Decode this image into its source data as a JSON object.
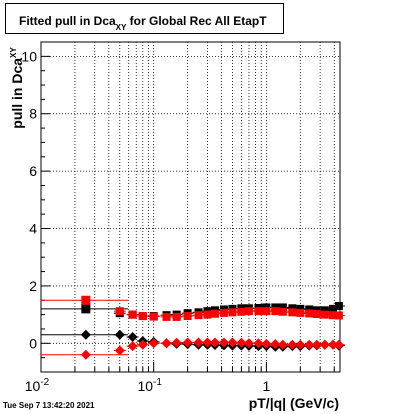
{
  "header": {
    "title_main": "Fitted pull in Dca",
    "title_sub": "XY",
    "title_rest": " for Global Rec All EtapT"
  },
  "footer": {
    "datestamp": "Tue Sep  7 13:42:20 2021"
  },
  "axes": {
    "xlabel": "pT/|q| (GeV/c)",
    "ylabel_main": "pull in Dca",
    "ylabel_sub": "XY"
  },
  "chart_data": {
    "type": "scatter",
    "title": "Fitted pull in Dca_XY for Global Rec All EtapT",
    "xlabel": "pT/|q| (GeV/c)",
    "ylabel": "pull in Dca_XY",
    "xscale": "log",
    "xlim": [
      0.01,
      4.5
    ],
    "ylim": [
      -1.0,
      10.5
    ],
    "grid": true,
    "x_tick_labels": [
      "10^-2",
      "10^-1",
      "1"
    ],
    "y_tick_labels": [
      "0",
      "2",
      "4",
      "6",
      "8",
      "10"
    ],
    "colors": {
      "black": "#000000",
      "red": "#ff0000"
    },
    "series": [
      {
        "marker": "square",
        "color": "#000000",
        "x": [
          0.025,
          0.05,
          0.065,
          0.08,
          0.1,
          0.13,
          0.16,
          0.2,
          0.25,
          0.3,
          0.35,
          0.42,
          0.5,
          0.6,
          0.7,
          0.85,
          1.0,
          1.2,
          1.4,
          1.7,
          2.0,
          2.4,
          2.8,
          3.3,
          3.9,
          4.4
        ],
        "y": [
          1.2,
          1.05,
          1.0,
          0.95,
          0.95,
          0.98,
          1.0,
          1.05,
          1.08,
          1.12,
          1.15,
          1.18,
          1.2,
          1.22,
          1.22,
          1.23,
          1.25,
          1.25,
          1.25,
          1.22,
          1.2,
          1.18,
          1.15,
          1.15,
          1.2,
          1.3
        ]
      },
      {
        "marker": "square",
        "color": "#ff0000",
        "x": [
          0.025,
          0.05,
          0.065,
          0.08,
          0.1,
          0.13,
          0.16,
          0.2,
          0.25,
          0.3,
          0.35,
          0.42,
          0.5,
          0.6,
          0.7,
          0.85,
          1.0,
          1.2,
          1.4,
          1.7,
          2.0,
          2.4,
          2.8,
          3.3,
          3.9,
          4.4
        ],
        "y": [
          1.5,
          1.12,
          1.0,
          0.95,
          0.93,
          0.92,
          0.92,
          0.95,
          0.98,
          1.0,
          1.03,
          1.06,
          1.08,
          1.1,
          1.12,
          1.12,
          1.12,
          1.12,
          1.1,
          1.08,
          1.06,
          1.04,
          1.02,
          1.0,
          0.98,
          0.97
        ]
      },
      {
        "marker": "diamond",
        "color": "#000000",
        "x": [
          0.025,
          0.05,
          0.065,
          0.08,
          0.1,
          0.13,
          0.16,
          0.2,
          0.25,
          0.3,
          0.35,
          0.42,
          0.5,
          0.6,
          0.7,
          0.85,
          1.0,
          1.2,
          1.4,
          1.7,
          2.0,
          2.4,
          2.8,
          3.3,
          3.9,
          4.4
        ],
        "y": [
          0.3,
          0.3,
          0.22,
          0.08,
          0.05,
          0.0,
          -0.02,
          -0.03,
          -0.05,
          -0.05,
          -0.06,
          -0.07,
          -0.08,
          -0.08,
          -0.09,
          -0.1,
          -0.1,
          -0.12,
          -0.12,
          -0.1,
          -0.1,
          -0.08,
          -0.07,
          -0.05,
          -0.05,
          -0.08
        ]
      },
      {
        "marker": "diamond",
        "color": "#ff0000",
        "x": [
          0.025,
          0.05,
          0.065,
          0.08,
          0.1,
          0.13,
          0.16,
          0.2,
          0.25,
          0.3,
          0.35,
          0.42,
          0.5,
          0.6,
          0.7,
          0.85,
          1.0,
          1.2,
          1.4,
          1.7,
          2.0,
          2.4,
          2.8,
          3.3,
          3.9,
          4.4
        ],
        "y": [
          -0.4,
          -0.25,
          -0.1,
          -0.05,
          0.0,
          0.0,
          0.02,
          0.03,
          0.03,
          0.03,
          0.03,
          0.03,
          0.03,
          0.02,
          0.0,
          0.0,
          -0.02,
          -0.03,
          -0.05,
          -0.05,
          -0.05,
          -0.05,
          -0.05,
          -0.05,
          -0.05,
          -0.05
        ]
      }
    ]
  }
}
